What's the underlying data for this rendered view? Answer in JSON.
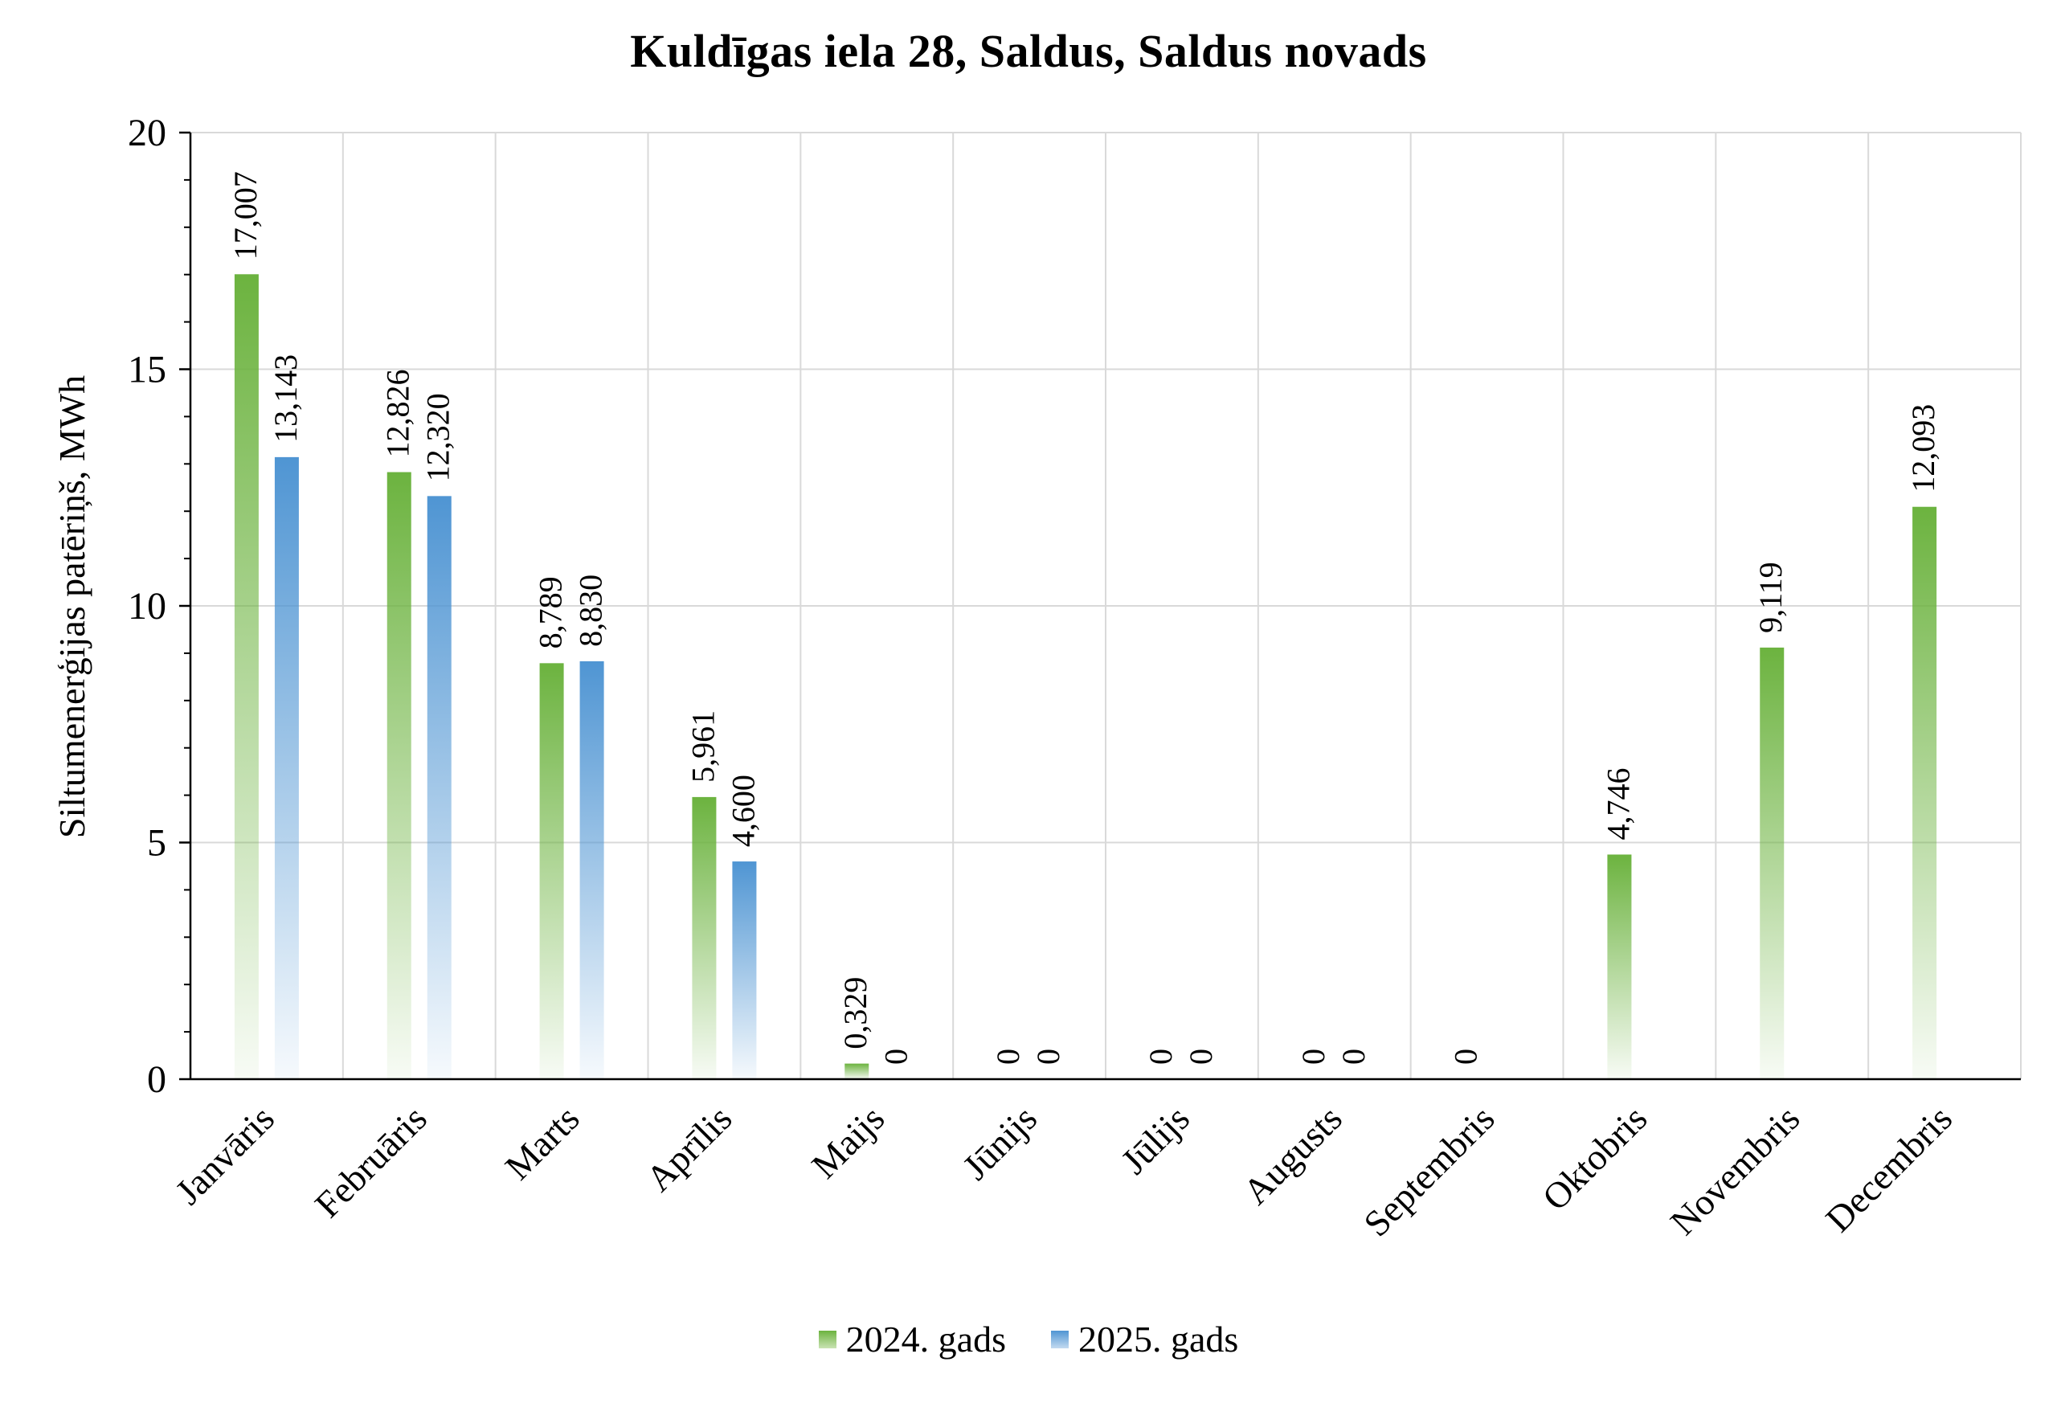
{
  "chart_data": {
    "type": "bar",
    "title": "Kuldīgas iela 28, Saldus, Saldus novads",
    "ylabel": "Siltumenerģijas patēriņš, MWh",
    "xlabel": "",
    "ylim": [
      0,
      20
    ],
    "yticks": [
      0,
      5,
      10,
      15,
      20
    ],
    "grid": true,
    "legend_position": "bottom",
    "categories": [
      "Janvāris",
      "Februāris",
      "Marts",
      "Aprīlis",
      "Maijs",
      "Jūnijs",
      "Jūlijs",
      "Augusts",
      "Septembris",
      "Oktobris",
      "Novembris",
      "Decembris"
    ],
    "series": [
      {
        "name": "2024. gads",
        "color": "#6cb33f",
        "values": [
          17.007,
          12.826,
          8.789,
          5.961,
          0.329,
          0,
          0,
          0,
          0,
          4.746,
          9.119,
          12.093
        ],
        "labels": [
          "17,007",
          "12,826",
          "8,789",
          "5,961",
          "0,329",
          "0",
          "0",
          "0",
          "0",
          "4,746",
          "9,119",
          "12,093"
        ]
      },
      {
        "name": "2025. gads",
        "color": "#4f95d3",
        "values": [
          13.143,
          12.32,
          8.83,
          4.6,
          0,
          0,
          0,
          0,
          null,
          null,
          null,
          null
        ],
        "labels": [
          "13,143",
          "12,320",
          "8,830",
          "4,600",
          "0",
          "0",
          "0",
          "0",
          null,
          null,
          null,
          null
        ]
      }
    ]
  }
}
